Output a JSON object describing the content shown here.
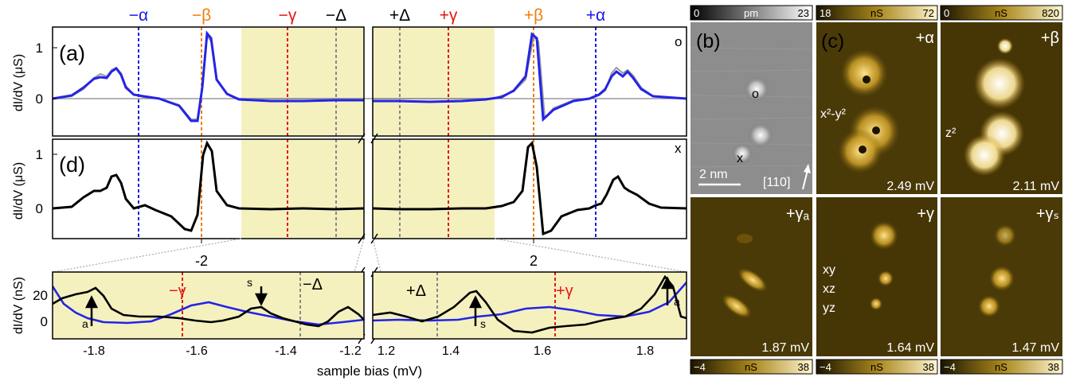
{
  "top_labels": [
    {
      "text": "−α",
      "color": "#1a1ae6"
    },
    {
      "text": "−β",
      "color": "#f07d0a"
    },
    {
      "text": "−γ",
      "color": "#e61414"
    },
    {
      "text": "−Δ",
      "color": "#000000"
    },
    {
      "text": "+Δ",
      "color": "#000000"
    },
    {
      "text": "+γ",
      "color": "#e61414"
    },
    {
      "text": "+β",
      "color": "#f07d0a"
    },
    {
      "text": "+α",
      "color": "#1a1ae6"
    }
  ],
  "panel_a": {
    "label": "(a)",
    "marker": "o",
    "ylabel": "dI/dV (μS)",
    "yticks": [
      "1",
      "0"
    ]
  },
  "panel_d": {
    "label": "(d)",
    "marker": "x",
    "ylabel": "dI/dV (μS)",
    "yticks": [
      "1",
      "0"
    ],
    "xticks": [
      "-2",
      "2"
    ]
  },
  "panel_e": {
    "ylabel": "dI/dV (nS)",
    "yticks": [
      "20",
      "0"
    ],
    "xticks": [
      "-1.8",
      "-1.6",
      "-1.4",
      "-1.2",
      "1.2",
      "1.4",
      "1.6",
      "1.8"
    ],
    "xlabel": "sample bias (mV)",
    "gamma_neg": "−γ",
    "delta_neg": "−Δ",
    "delta_pos": "+Δ",
    "gamma_pos": "+γ",
    "arrow_labels": [
      "a",
      "s",
      "s",
      "a"
    ]
  },
  "panel_b": {
    "label": "(b)",
    "colorbar": {
      "min": "0",
      "unit": "pm",
      "max": "23"
    },
    "markers": [
      "o",
      "x"
    ],
    "scalebar": "2 nm",
    "direction": "[110]"
  },
  "panel_c": {
    "label": "(c)"
  },
  "maps": [
    {
      "tag": "+α",
      "orbital": "x²-y²",
      "bias": "2.49 mV"
    },
    {
      "tag": "+β",
      "orbital": "z²",
      "bias": "2.11 mV"
    },
    {
      "tag": "+γₐ",
      "orbital": "",
      "bias": "1.87 mV"
    },
    {
      "tag": "+γ",
      "orbital_lines": [
        "xy",
        "xz",
        "yz"
      ],
      "bias": "1.64 mV"
    },
    {
      "tag": "+γₛ",
      "orbital": "",
      "bias": "1.47 mV"
    }
  ],
  "colorbars_top": [
    {
      "min": "18",
      "unit": "nS",
      "max": "72"
    },
    {
      "min": "0",
      "unit": "nS",
      "max": "820"
    }
  ],
  "colorbars_bottom": [
    {
      "min": "−4",
      "unit": "nS",
      "max": "38"
    },
    {
      "min": "−4",
      "unit": "nS",
      "max": "38"
    },
    {
      "min": "−4",
      "unit": "nS",
      "max": "38"
    }
  ],
  "colors": {
    "alpha": "#1a1ae6",
    "beta": "#f07d0a",
    "gamma": "#e61414",
    "delta": "#888888",
    "shade": "#f4f1bf"
  }
}
